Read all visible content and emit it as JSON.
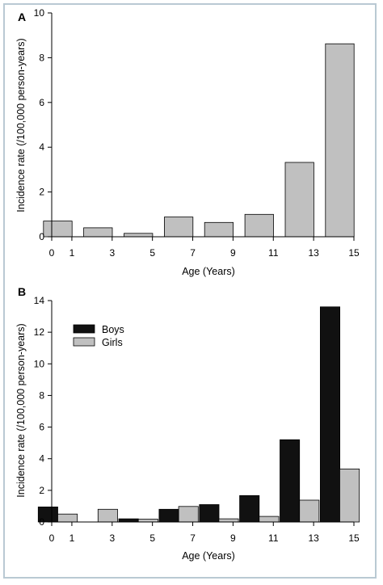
{
  "chart_data": [
    {
      "type": "bar",
      "panel_label": "A",
      "x": [
        1,
        3,
        5,
        7,
        9,
        11,
        13,
        15
      ],
      "values": [
        0.7,
        0.4,
        0.15,
        0.88,
        0.64,
        1.0,
        3.32,
        8.62
      ],
      "xlabel": "Age (Years)",
      "ylabel": "Incidence rate (/100,000 person-years)",
      "xlim": [
        0,
        15
      ],
      "ylim": [
        0,
        10
      ],
      "xticks": [
        "0",
        "1",
        "3",
        "5",
        "7",
        "9",
        "11",
        "13",
        "15"
      ],
      "yticks": [
        "0",
        "2",
        "4",
        "6",
        "8",
        "10"
      ],
      "bar_color": "#c0c0c0",
      "grid": false
    },
    {
      "type": "bar",
      "panel_label": "B",
      "x": [
        1,
        3,
        5,
        7,
        9,
        11,
        13,
        15
      ],
      "series": [
        {
          "name": "Boys",
          "color": "#111111",
          "values": [
            0.95,
            0.0,
            0.2,
            0.8,
            1.1,
            1.67,
            5.2,
            13.6
          ]
        },
        {
          "name": "Girls",
          "color": "#c0c0c0",
          "values": [
            0.5,
            0.8,
            0.18,
            0.98,
            0.2,
            0.35,
            1.38,
            3.35
          ]
        }
      ],
      "xlabel": "Age (Years)",
      "ylabel": "Incidence rate (/100,000 person-years)",
      "xlim": [
        0,
        15
      ],
      "ylim": [
        0,
        14
      ],
      "xticks": [
        "0",
        "1",
        "3",
        "5",
        "7",
        "9",
        "11",
        "13",
        "15"
      ],
      "yticks": [
        "0",
        "2",
        "4",
        "6",
        "8",
        "10",
        "12",
        "14"
      ],
      "legend_position": "top-left",
      "grid": false
    }
  ]
}
